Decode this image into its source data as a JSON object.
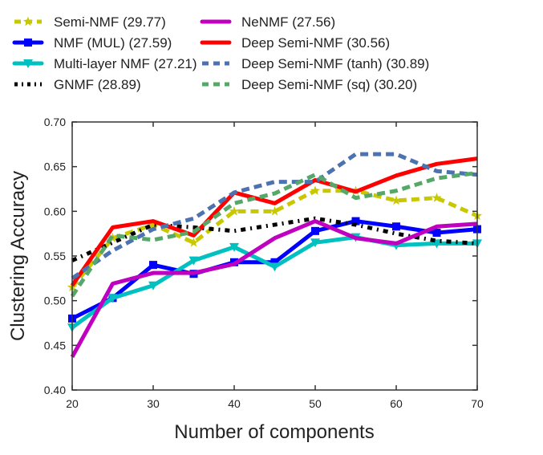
{
  "chart_data": {
    "type": "line",
    "title": "",
    "xlabel": "Number of components",
    "ylabel": "Clustering Accuracy",
    "xlim": [
      20,
      70
    ],
    "ylim": [
      0.4,
      0.7
    ],
    "xticks": [
      20,
      30,
      40,
      50,
      60,
      70
    ],
    "yticks": [
      "0.40",
      "0.45",
      "0.50",
      "0.55",
      "0.60",
      "0.65",
      "0.70"
    ],
    "grid": false,
    "legend_placement": "top (above plot, two columns)",
    "x": [
      20,
      25,
      30,
      35,
      40,
      45,
      50,
      55,
      60,
      65,
      70
    ],
    "series": [
      {
        "name": "Semi-NMF (29.77)",
        "color": "#c8c800",
        "dash": "dashed",
        "marker": "star",
        "values": [
          0.515,
          0.57,
          0.585,
          0.565,
          0.6,
          0.6,
          0.623,
          0.623,
          0.612,
          0.615,
          0.595
        ]
      },
      {
        "name": "NMF (MUL) (27.59)",
        "color": "#0000ff",
        "dash": "solid",
        "marker": "square",
        "values": [
          0.48,
          0.503,
          0.54,
          0.53,
          0.543,
          0.543,
          0.578,
          0.589,
          0.583,
          0.576,
          0.58
        ]
      },
      {
        "name": "Multi-layer NMF (27.21)",
        "color": "#00c0c0",
        "dash": "solid",
        "marker": "triangle-down",
        "values": [
          0.47,
          0.503,
          0.517,
          0.545,
          0.56,
          0.538,
          0.565,
          0.571,
          0.562,
          0.564,
          0.564
        ]
      },
      {
        "name": "GNMF (28.89)",
        "color": "#000000",
        "dash": "dashdot",
        "marker": "none",
        "values": [
          0.545,
          0.565,
          0.585,
          0.582,
          0.578,
          0.585,
          0.592,
          0.585,
          0.575,
          0.567,
          0.564
        ]
      },
      {
        "name": "NeNMF (27.56)",
        "color": "#bf00bf",
        "dash": "solid",
        "marker": "none",
        "values": [
          0.437,
          0.519,
          0.531,
          0.531,
          0.541,
          0.57,
          0.589,
          0.57,
          0.564,
          0.583,
          0.586
        ]
      },
      {
        "name": "Deep Semi-NMF (30.56)",
        "color": "#ff0000",
        "dash": "solid",
        "marker": "none",
        "values": [
          0.517,
          0.582,
          0.589,
          0.573,
          0.621,
          0.609,
          0.635,
          0.622,
          0.64,
          0.653,
          0.659
        ]
      },
      {
        "name": "Deep Semi-NMF (tanh) (30.89)",
        "color": "#4c72b0",
        "dash": "dashed",
        "marker": "none",
        "values": [
          0.525,
          0.556,
          0.58,
          0.592,
          0.621,
          0.633,
          0.633,
          0.664,
          0.664,
          0.645,
          0.641
        ]
      },
      {
        "name": "Deep Semi-NMF (sq) (30.20)",
        "color": "#55a868",
        "dash": "dashed",
        "marker": "none",
        "values": [
          0.505,
          0.573,
          0.568,
          0.577,
          0.609,
          0.62,
          0.641,
          0.615,
          0.623,
          0.637,
          0.643
        ]
      }
    ]
  }
}
